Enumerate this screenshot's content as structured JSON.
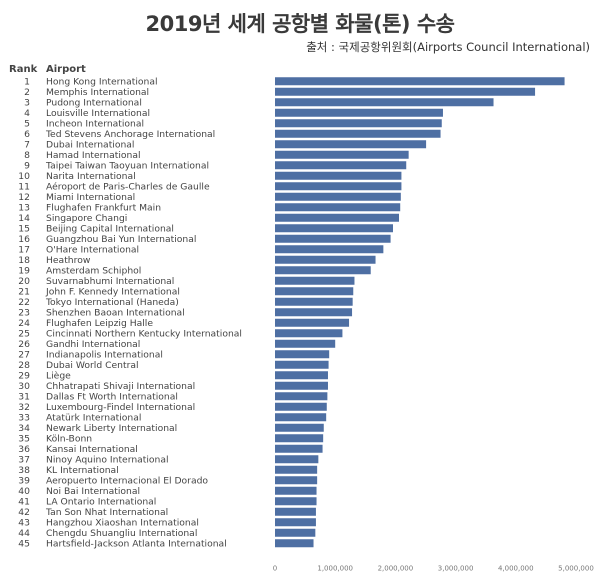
{
  "header": {
    "title": "2019년 세계 공항별 화물(톤) 수송",
    "source": "출처 : 국제공항위원회(Airports Council International)",
    "col_rank": "Rank",
    "col_airport": "Airport"
  },
  "chart_data": {
    "type": "bar",
    "orientation": "horizontal",
    "title": "2019년 세계 공항별 화물(톤) 수송",
    "bar_color": "#4e6fa3",
    "xlim": [
      0,
      5000000
    ],
    "x_ticks": [
      "0",
      "1,000,000",
      "2,000,000",
      "3,000,000",
      "4,000,000",
      "5,000,000"
    ],
    "ranks": [
      "1",
      "2",
      "3",
      "4",
      "5",
      "6",
      "7",
      "8",
      "9",
      "10",
      "11",
      "12",
      "13",
      "14",
      "15",
      "16",
      "17",
      "18",
      "19",
      "20",
      "21",
      "22",
      "23",
      "24",
      "25",
      "26",
      "27",
      "28",
      "29",
      "30",
      "31",
      "32",
      "33",
      "34",
      "35",
      "36",
      "37",
      "38",
      "39",
      "40",
      "41",
      "42",
      "43",
      "44",
      "45"
    ],
    "categories": [
      "Hong Kong International",
      "Memphis International",
      "Pudong International",
      "Louisville International",
      "Incheon International",
      "Ted Stevens Anchorage International",
      "Dubai International",
      "Hamad International",
      "Taipei Taiwan Taoyuan International",
      "Narita International",
      "Aéroport de Paris-Charles de Gaulle",
      "Miami International",
      "Flughafen Frankfurt Main",
      "Singapore Changi",
      "Beijing Capital International",
      "Guangzhou Bai Yun International",
      "O'Hare International",
      "Heathrow",
      "Amsterdam  Schiphol",
      "Suvarnabhumi International",
      "John F. Kennedy International",
      "Tokyo International (Haneda)",
      "Shenzhen Baoan International",
      "Flughafen Leipzig Halle",
      "Cincinnati Northern Kentucky International",
      "Gandhi International",
      "Indianapolis International",
      "Dubai World Central",
      "Liège",
      "Chhatrapati Shivaji International",
      "Dallas Ft Worth International",
      "Luxembourg-Findel International",
      "Atatürk International",
      "Newark Liberty International",
      "Köln-Bonn",
      "Kansai International",
      "Ninoy Aquino International",
      "KL International",
      "Aeropuerto Internacional El Dorado",
      "Noi Bai International",
      "LA Ontario International",
      "Tan Son Nhat International",
      "Hangzhou Xiaoshan International",
      "Chengdu Shuangliu International",
      "Hartsfield-Jackson Atlanta International"
    ],
    "values": [
      4810000,
      4320000,
      3630000,
      2790000,
      2770000,
      2750000,
      2510000,
      2220000,
      2180000,
      2100000,
      2100000,
      2090000,
      2080000,
      2060000,
      1960000,
      1920000,
      1800000,
      1670000,
      1590000,
      1320000,
      1300000,
      1290000,
      1280000,
      1230000,
      1120000,
      1000000,
      900000,
      890000,
      880000,
      880000,
      870000,
      860000,
      850000,
      810000,
      800000,
      790000,
      720000,
      700000,
      700000,
      690000,
      690000,
      680000,
      680000,
      670000,
      640000
    ],
    "xlabel": "",
    "ylabel": ""
  }
}
